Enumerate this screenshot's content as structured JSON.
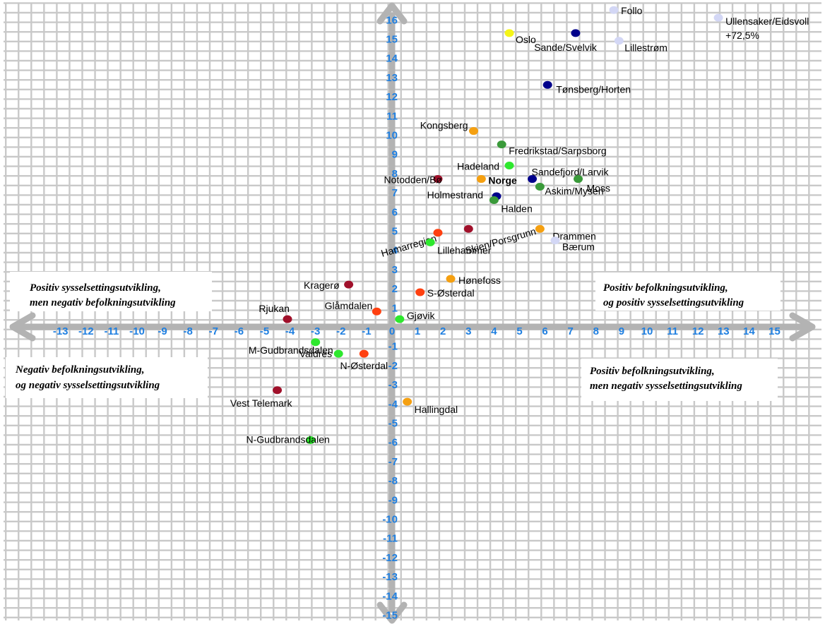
{
  "chart_data": {
    "type": "scatter",
    "title": "",
    "xlabel": "",
    "ylabel": "",
    "xlim": [
      -15,
      15
    ],
    "ylim": [
      -15,
      16
    ],
    "x_ticks": [
      -13,
      -12,
      -11,
      -10,
      -9,
      -8,
      -7,
      -6,
      -5,
      -4,
      -3,
      -2,
      -1,
      0,
      1,
      2,
      3,
      4,
      5,
      6,
      7,
      8,
      9,
      10,
      11,
      12,
      13,
      14,
      15
    ],
    "y_ticks": [
      16,
      15,
      14,
      13,
      12,
      11,
      10,
      9,
      8,
      7,
      6,
      5,
      4,
      3,
      2,
      1,
      -1,
      -2,
      -3,
      -4,
      -5,
      -6,
      -7,
      -8,
      -9,
      -10,
      -11,
      -12,
      -13,
      -14,
      -15
    ],
    "grid": true,
    "quadrant_labels": {
      "top_left": [
        "Positiv sysselsettingsutvikling,",
        "men negativ befolkningsutvikling"
      ],
      "top_right": [
        "Positiv befolkningsutvikling,",
        "og positiv sysselsettingsutvikling"
      ],
      "bottom_left": [
        "Negativ befolkningsutvikling,",
        "og negativ sysselsettingsutvikling"
      ],
      "bottom_right": [
        "Positiv befolkningsutvikling,",
        "men negativ sysselsettingsutvikling"
      ]
    },
    "points": [
      {
        "label": "Follo",
        "x": 8.7,
        "y": 16.5,
        "color": "#d3d7f5"
      },
      {
        "label": "Ullensaker/Eidsvoll",
        "sublabel": "+72,5%",
        "x": 12.8,
        "y": 16.1,
        "color": "#d3d7f5"
      },
      {
        "label": "Oslo",
        "x": 4.6,
        "y": 15.3,
        "color": "#f5f517"
      },
      {
        "label": "Sande/Svelvik",
        "x": 7.2,
        "y": 15.3,
        "color": "#00008b"
      },
      {
        "label": "Lillestrøm",
        "x": 8.9,
        "y": 14.9,
        "color": "#d3d7f5"
      },
      {
        "label": "Tønsberg/Horten",
        "x": 6.1,
        "y": 12.6,
        "color": "#00008b"
      },
      {
        "label": "Kongsberg",
        "x": 3.2,
        "y": 10.2,
        "color": "#f5a011"
      },
      {
        "label": "Fredrikstad/Sarpsborg",
        "x": 4.3,
        "y": 9.5,
        "color": "#3a9a3a"
      },
      {
        "label": "Hadeland",
        "x": 4.6,
        "y": 8.4,
        "color": "#2ee82e"
      },
      {
        "label": "Notodden/Bø",
        "x": 1.8,
        "y": 7.7,
        "color": "#a0102a"
      },
      {
        "label": "Norge",
        "x": 3.5,
        "y": 7.7,
        "color": "#f5a011",
        "bold": true
      },
      {
        "label": "Sandefjord/Larvik",
        "x": 5.5,
        "y": 7.7,
        "color": "#00008b"
      },
      {
        "label": "Moss",
        "x": 7.3,
        "y": 7.7,
        "color": "#3a9a3a"
      },
      {
        "label": "Askim/Mysen",
        "x": 5.8,
        "y": 7.3,
        "color": "#3a9a3a"
      },
      {
        "label": "Holmestrand",
        "x": 4.1,
        "y": 6.8,
        "color": "#00008b"
      },
      {
        "label": "Halden",
        "x": 4.0,
        "y": 6.6,
        "color": "#3a9a3a"
      },
      {
        "label": "Hamarregion",
        "x": 1.8,
        "y": 4.9,
        "color": "#ff4010"
      },
      {
        "label": "Skien/Porsgrunn",
        "x": 3.0,
        "y": 5.1,
        "color": "#a0102a"
      },
      {
        "label": "Drammen",
        "x": 5.8,
        "y": 5.1,
        "color": "#f5a011"
      },
      {
        "label": "Lillehammer",
        "x": 1.5,
        "y": 4.4,
        "color": "#2ee82e"
      },
      {
        "label": "Bærum",
        "x": 6.4,
        "y": 4.5,
        "color": "#d3d7f5"
      },
      {
        "label": "Hønefoss",
        "x": 2.3,
        "y": 2.5,
        "color": "#f5a011"
      },
      {
        "label": "Kragerø",
        "x": -1.7,
        "y": 2.2,
        "color": "#a0102a"
      },
      {
        "label": "S-Østerdal",
        "x": 1.1,
        "y": 1.8,
        "color": "#ff4010"
      },
      {
        "label": "Glåmdalen",
        "x": -0.6,
        "y": 0.8,
        "color": "#ff4010"
      },
      {
        "label": "Rjukan",
        "x": -4.1,
        "y": 0.4,
        "color": "#a0102a"
      },
      {
        "label": "Gjøvik",
        "x": 0.3,
        "y": 0.4,
        "color": "#2ee82e"
      },
      {
        "label": "M-Gudbrandsdalen",
        "x": -3.0,
        "y": -0.8,
        "color": "#2ee82e"
      },
      {
        "label": "Valdres",
        "x": -2.1,
        "y": -1.4,
        "color": "#2ee82e"
      },
      {
        "label": "N-Østerdal",
        "x": -1.1,
        "y": -1.4,
        "color": "#ff4010"
      },
      {
        "label": "Vest Telemark",
        "x": -4.5,
        "y": -3.3,
        "color": "#a0102a"
      },
      {
        "label": "Hallingdal",
        "x": 0.6,
        "y": -3.9,
        "color": "#f5a011"
      },
      {
        "label": "N-Gudbrandsdalen",
        "x": -3.2,
        "y": -5.9,
        "color": "#2ee82e"
      }
    ]
  }
}
